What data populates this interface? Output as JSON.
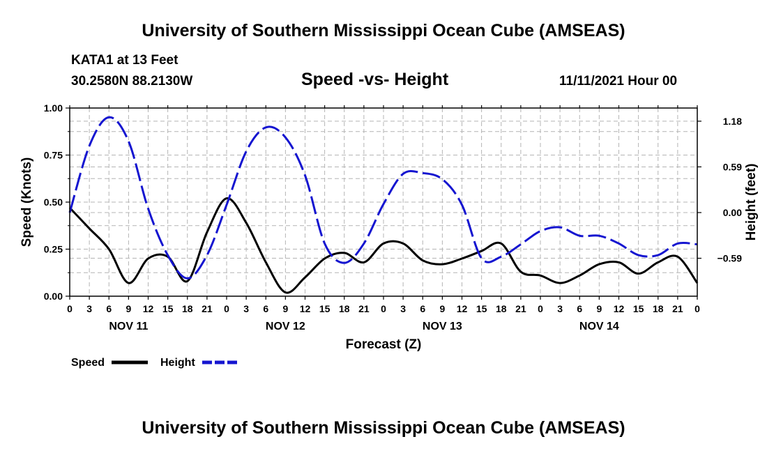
{
  "titles": {
    "main": "University of Southern Mississippi Ocean Cube (AMSEAS)",
    "footer": "University of Southern Mississippi Ocean Cube (AMSEAS)"
  },
  "header": {
    "station": "KATA1 at 13 Feet",
    "coords": "30.2580N  88.2130W",
    "subtitle": "Speed -vs- Height",
    "datetime": "11/11/2021 Hour 00"
  },
  "legend": {
    "speed": "Speed",
    "height": "Height"
  },
  "colors": {
    "speed": "#000000",
    "height": "#1515d0",
    "grid": "#b4b4b4"
  },
  "chart_data": {
    "type": "line",
    "title": "Speed -vs- Height",
    "xlabel": "Forecast (Z)",
    "ylabel": "Speed (Knots)",
    "y2label": "Height (feet)",
    "xlim": [
      0,
      96
    ],
    "ylim": [
      0,
      1
    ],
    "y2lim": [
      -1.08,
      1.35
    ],
    "x_tick_values": [
      0,
      3,
      6,
      9,
      12,
      15,
      18,
      21,
      24,
      27,
      30,
      33,
      36,
      39,
      42,
      45,
      48,
      51,
      54,
      57,
      60,
      63,
      66,
      69,
      72,
      75,
      78,
      81,
      84,
      87,
      90,
      93,
      96
    ],
    "x_tick_labels": [
      "0",
      "3",
      "6",
      "9",
      "12",
      "15",
      "18",
      "21",
      "0",
      "3",
      "6",
      "9",
      "12",
      "15",
      "18",
      "21",
      "0",
      "3",
      "6",
      "9",
      "12",
      "15",
      "18",
      "21",
      "0",
      "3",
      "6",
      "9",
      "12",
      "15",
      "18",
      "21",
      "0"
    ],
    "y_ticks": [
      0,
      0.25,
      0.5,
      0.75,
      1.0
    ],
    "y_tick_labels": [
      "0.00",
      "0.25",
      "0.50",
      "0.75",
      "1.00"
    ],
    "y2_ticks": [
      1.18,
      0.59,
      0.0,
      -0.59
    ],
    "y2_tick_labels": [
      "1.18",
      "0.59",
      "0.00",
      "−0.59"
    ],
    "day_labels": [
      {
        "x": 9,
        "label": "NOV 11"
      },
      {
        "x": 33,
        "label": "NOV 12"
      },
      {
        "x": 57,
        "label": "NOV 13"
      },
      {
        "x": 81,
        "label": "NOV 14"
      }
    ],
    "series": [
      {
        "name": "Speed",
        "axis": "left",
        "style": "solid",
        "x": [
          0,
          3,
          6,
          9,
          12,
          15,
          18,
          21,
          24,
          27,
          30,
          33,
          36,
          39,
          42,
          45,
          48,
          51,
          54,
          57,
          60,
          63,
          66,
          69,
          72,
          75,
          78,
          81,
          84,
          87,
          90,
          93,
          96
        ],
        "values": [
          0.47,
          0.36,
          0.25,
          0.07,
          0.2,
          0.21,
          0.08,
          0.34,
          0.52,
          0.39,
          0.18,
          0.02,
          0.1,
          0.2,
          0.23,
          0.18,
          0.28,
          0.28,
          0.19,
          0.17,
          0.2,
          0.24,
          0.28,
          0.13,
          0.11,
          0.07,
          0.11,
          0.17,
          0.18,
          0.12,
          0.18,
          0.21,
          0.07
        ]
      },
      {
        "name": "Height",
        "axis": "right",
        "style": "dashed",
        "x": [
          0,
          3,
          6,
          9,
          12,
          15,
          18,
          21,
          24,
          27,
          30,
          33,
          36,
          39,
          42,
          45,
          48,
          51,
          54,
          57,
          60,
          63,
          66,
          69,
          72,
          75,
          78,
          81,
          84,
          87,
          90,
          93,
          96
        ],
        "values": [
          0.0,
          0.86,
          1.23,
          0.92,
          0.05,
          -0.55,
          -0.85,
          -0.55,
          0.1,
          0.79,
          1.1,
          0.97,
          0.48,
          -0.4,
          -0.65,
          -0.4,
          0.11,
          0.5,
          0.51,
          0.43,
          0.1,
          -0.59,
          -0.57,
          -0.41,
          -0.24,
          -0.19,
          -0.3,
          -0.3,
          -0.4,
          -0.55,
          -0.55,
          -0.4,
          -0.41
        ]
      }
    ]
  }
}
